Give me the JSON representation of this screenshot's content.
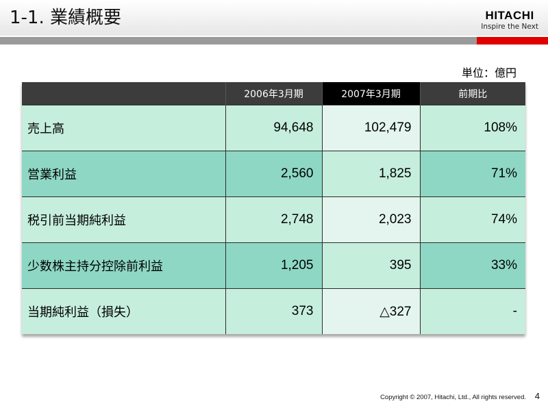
{
  "slide": {
    "title": "1-1. 業績概要",
    "unit": "単位：億円"
  },
  "logo": {
    "name": "HITACHI",
    "tagline": "Inspire the Next"
  },
  "table": {
    "headers": [
      "",
      "2006年3月期",
      "2007年3月期",
      "前期比"
    ],
    "rows": [
      {
        "label": "売上高",
        "fy2006": "94,648",
        "fy2007": "102,479",
        "ratio": "108%"
      },
      {
        "label": "営業利益",
        "fy2006": "2,560",
        "fy2007": "1,825",
        "ratio": "71%"
      },
      {
        "label": "税引前当期純利益",
        "fy2006": "2,748",
        "fy2007": "2,023",
        "ratio": "74%"
      },
      {
        "label": "少数株主持分控除前利益",
        "fy2006": "1,205",
        "fy2007": "395",
        "ratio": "33%"
      },
      {
        "label": "当期純利益（損失）",
        "fy2006": "373",
        "fy2007": "△327",
        "ratio": "-"
      }
    ]
  },
  "footer": {
    "copyright": "Copyright © 2007, Hitachi, Ltd., All rights reserved.",
    "page_number": "4"
  },
  "colors": {
    "row_light": "#c6eedd",
    "row_dark": "#8ed7c4",
    "header_bg": "#3c3c3c",
    "accent_red": "#e00000"
  }
}
